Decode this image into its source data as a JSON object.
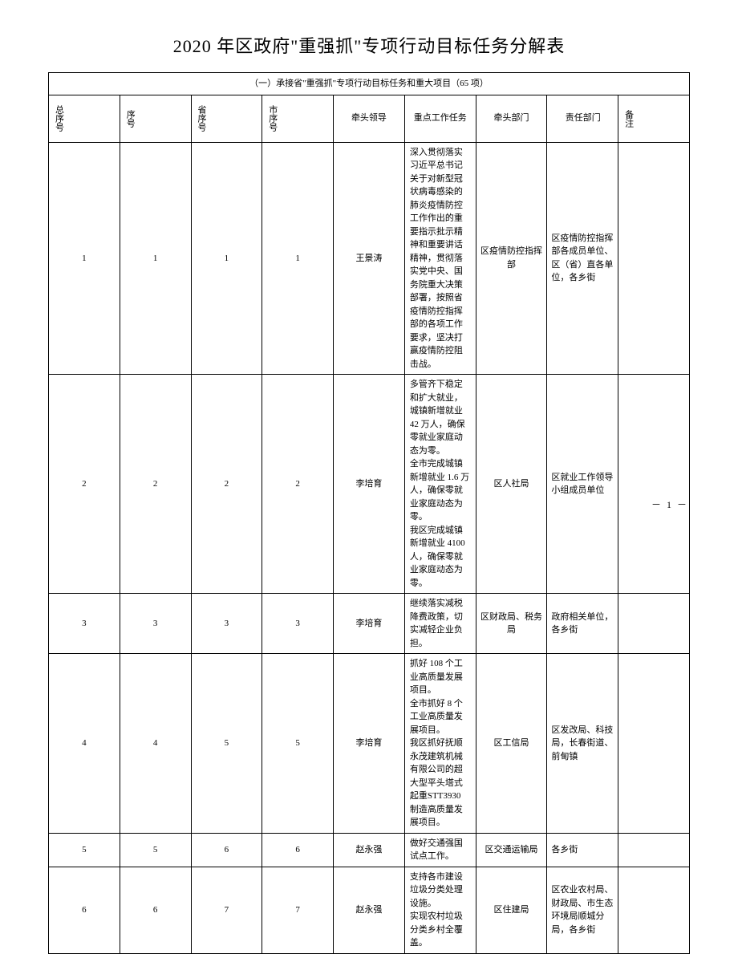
{
  "title": "2020 年区政府\"重强抓\"专项行动目标任务分解表",
  "subtitle": "（一）承接省\"重强抓\"专项行动目标任务和重大项目（65 项）",
  "headers": {
    "total_idx": "总序号",
    "idx": "序号",
    "prov_idx": "省序号",
    "city_idx": "市序号",
    "leader": "牵头领导",
    "task": "重点工作任务",
    "lead_dept": "牵头部门",
    "resp_dept": "责任部门",
    "note": "备注"
  },
  "rows": [
    {
      "total_idx": "1",
      "idx": "1",
      "prov_idx": "1",
      "city_idx": "1",
      "leader": "王景涛",
      "task": "深入贯彻落实习近平总书记关于对新型冠状病毒感染的肺炎疫情防控工作作出的重要指示批示精神和重要讲话精神，贯彻落实党中央、国务院重大决策部署，按照省疫情防控指挥部的各项工作要求，坚决打赢疫情防控阻击战。",
      "lead_dept": "区疫情防控指挥部",
      "resp_dept": "区疫情防控指挥部各成员单位、区（省）直各单位，各乡街",
      "note": ""
    },
    {
      "total_idx": "2",
      "idx": "2",
      "prov_idx": "2",
      "city_idx": "2",
      "leader": "李培育",
      "task": "多管齐下稳定和扩大就业，城镇新增就业 42 万人，确保零就业家庭动态为零。\n全市完成城镇新增就业 1.6 万人，确保零就业家庭动态为零。\n我区完成城镇新增就业 4100 人，确保零就业家庭动态为零。",
      "lead_dept": "区人社局",
      "resp_dept": "区就业工作领导小组成员单位",
      "note": ""
    },
    {
      "total_idx": "3",
      "idx": "3",
      "prov_idx": "3",
      "city_idx": "3",
      "leader": "李培育",
      "task": "继续落实减税降费政策，切实减轻企业负担。",
      "lead_dept": "区财政局、税务局",
      "resp_dept": "政府相关单位，各乡街",
      "note": ""
    },
    {
      "total_idx": "4",
      "idx": "4",
      "prov_idx": "5",
      "city_idx": "5",
      "leader": "李培育",
      "task": "抓好 108 个工业高质量发展项目。\n全市抓好 8 个工业高质量发展项目。\n我区抓好抚顺永茂建筑机械有限公司的超大型平头塔式起重STT3930 制造高质量发展项目。",
      "lead_dept": "区工信局",
      "resp_dept": "区发改局、科技局，长春街道、前甸镇",
      "note": ""
    },
    {
      "total_idx": "5",
      "idx": "5",
      "prov_idx": "6",
      "city_idx": "6",
      "leader": "赵永强",
      "task": "做好交通强国试点工作。",
      "lead_dept": "区交通运输局",
      "resp_dept": "各乡街",
      "note": ""
    },
    {
      "total_idx": "6",
      "idx": "6",
      "prov_idx": "7",
      "city_idx": "7",
      "leader": "赵永强",
      "task": "支持各市建设垃圾分类处理设施。\n实现农村垃圾分类乡村全覆盖。",
      "lead_dept": "区住建局",
      "resp_dept": "区农业农村局、财政局、市生态环境局顺城分局，各乡街",
      "note": ""
    }
  ],
  "page_number": "－ 1 －"
}
